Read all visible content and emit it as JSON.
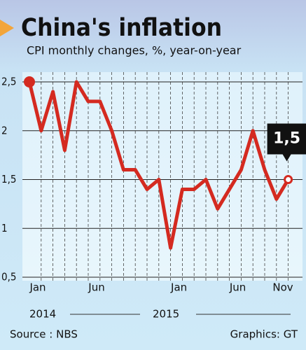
{
  "chart_data": {
    "type": "line",
    "title": "China's inflation",
    "subtitle": "CPI monthly changes, %, year-on-year",
    "categories": [
      "Jan",
      null,
      null,
      null,
      null,
      "Jun",
      null,
      null,
      null,
      null,
      null,
      null,
      "Jan",
      null,
      null,
      null,
      null,
      "Jun",
      null,
      null,
      null,
      null,
      "Nov"
    ],
    "years": [
      "2014",
      "2015"
    ],
    "series": [
      {
        "color": "#d42a20",
        "values": [
          2.5,
          2.0,
          2.4,
          1.8,
          2.5,
          2.3,
          2.3,
          2.0,
          1.6,
          1.6,
          1.4,
          1.5,
          0.8,
          1.4,
          1.4,
          1.5,
          1.2,
          1.4,
          1.6,
          2.0,
          1.6,
          1.3,
          1.5
        ]
      }
    ],
    "annotation": "1,5",
    "ylim": [
      0.5,
      2.5
    ],
    "yticks": [
      {
        "value": 0.5,
        "label": "0,5"
      },
      1,
      {
        "value": 1.5,
        "label": "1,5"
      },
      2,
      {
        "value": 2.5,
        "label": "2,5"
      }
    ],
    "grid": true,
    "source": "Source : NBS",
    "credit": "Graphics: GT"
  }
}
